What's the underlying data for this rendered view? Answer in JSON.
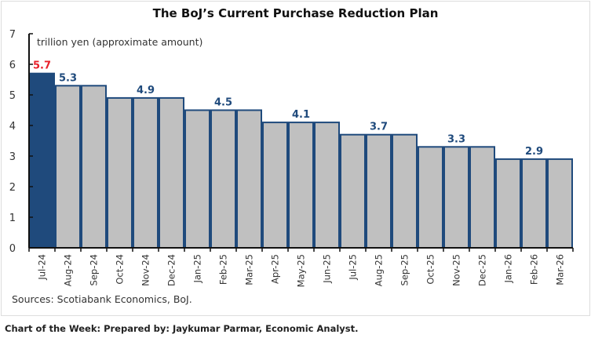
{
  "chart_data": {
    "type": "bar",
    "title": "The BoJ’s Current Purchase Reduction Plan",
    "unit_label": "trillion yen (approximate amount)",
    "categories": [
      "Jul-24",
      "Aug-24",
      "Sep-24",
      "Oct-24",
      "Nov-24",
      "Dec-24",
      "Jan-25",
      "Feb-25",
      "Mar-25",
      "Apr-25",
      "May-25",
      "Jun-25",
      "Jul-25",
      "Aug-25",
      "Sep-25",
      "Oct-25",
      "Nov-25",
      "Dec-25",
      "Jan-26",
      "Feb-26",
      "Mar-26"
    ],
    "values": [
      5.7,
      5.3,
      5.3,
      4.9,
      4.9,
      4.9,
      4.5,
      4.5,
      4.5,
      4.1,
      4.1,
      4.1,
      3.7,
      3.7,
      3.7,
      3.3,
      3.3,
      3.3,
      2.9,
      2.9,
      2.9
    ],
    "data_labels": [
      {
        "index": 0,
        "text": "5.7"
      },
      {
        "index": 1,
        "text": "5.3"
      },
      {
        "index": 4,
        "text": "4.9"
      },
      {
        "index": 7,
        "text": "4.5"
      },
      {
        "index": 10,
        "text": "4.1"
      },
      {
        "index": 13,
        "text": "3.7"
      },
      {
        "index": 16,
        "text": "3.3"
      },
      {
        "index": 19,
        "text": "2.9"
      }
    ],
    "ylim": [
      0,
      7
    ],
    "yticks": [
      0,
      1,
      2,
      3,
      4,
      5,
      6,
      7
    ],
    "grid": false,
    "colors": {
      "highlight_bar": "#1f4a7c",
      "bar": "#c0c0c0",
      "bar_edge": "#1f4a7c",
      "highlight_label": "#e8202a",
      "label": "#1f4a7c"
    }
  },
  "source": "Sources: Scotiabank Economics, BoJ.",
  "footer": "Chart of the Week: Prepared by: Jaykumar Parmar, Economic Analyst."
}
